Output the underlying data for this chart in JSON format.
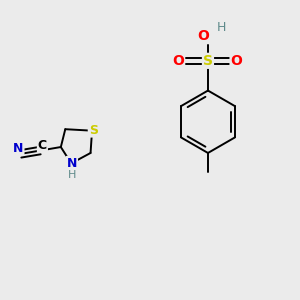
{
  "background_color": "#ebebeb",
  "figsize": [
    3.0,
    3.0
  ],
  "dpi": 100,
  "colors": {
    "C": "#000000",
    "N": "#0000cd",
    "S": "#cccc00",
    "O": "#ff0000",
    "H": "#5f8a8b",
    "bond": "#000000"
  }
}
